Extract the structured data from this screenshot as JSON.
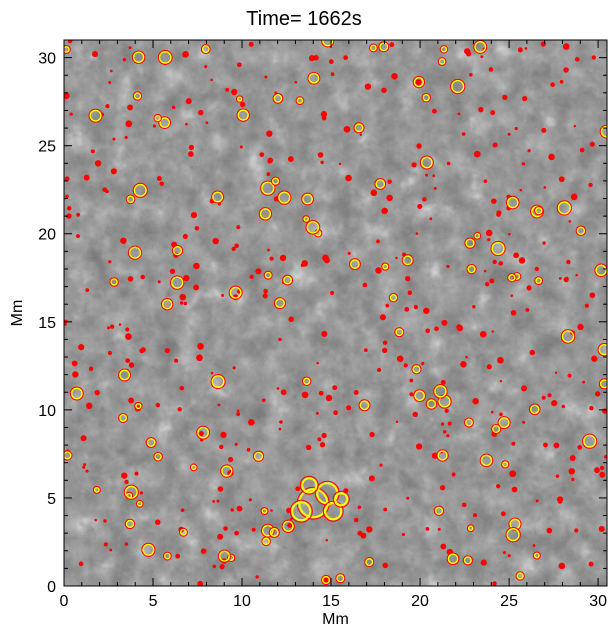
{
  "chart_data": {
    "type": "heatmap",
    "title": "Time= 1662s",
    "xlabel": "Mm",
    "ylabel": "Mm",
    "xlim": [
      0,
      30.5
    ],
    "ylim": [
      0,
      31
    ],
    "xticks": [
      "0",
      "5",
      "10",
      "15",
      "20",
      "25",
      "30"
    ],
    "yticks": [
      "0",
      "5",
      "10",
      "15",
      "20",
      "25",
      "30"
    ],
    "colormap": "grayscale granulation",
    "contours": [
      {
        "color": "#ff0000"
      },
      {
        "color": "#ffff00"
      }
    ]
  }
}
